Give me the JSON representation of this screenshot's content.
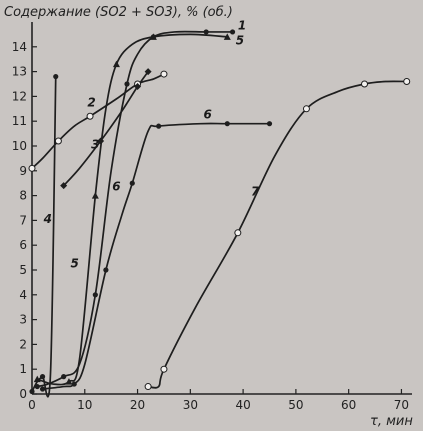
{
  "chart_data": {
    "type": "line",
    "ylabel": "Содержание (SO2 + SO3), % (об.)",
    "xlabel": "τ, мин",
    "xlim": [
      0,
      72
    ],
    "ylim": [
      0,
      15
    ],
    "x_ticks": [
      0,
      10,
      20,
      30,
      40,
      50,
      60,
      70
    ],
    "y_ticks": [
      0,
      1,
      2,
      3,
      4,
      5,
      6,
      7,
      8,
      9,
      10,
      11,
      12,
      13,
      14
    ],
    "grid": false,
    "series": [
      {
        "name": "1",
        "marker": "dot",
        "points": [
          [
            1,
            0.3
          ],
          [
            3,
            0.4
          ],
          [
            6,
            0.7
          ],
          [
            9,
            1.2
          ],
          [
            12,
            4
          ],
          [
            15,
            9
          ],
          [
            18,
            12.5
          ],
          [
            20,
            13.7
          ],
          [
            23,
            14.4
          ],
          [
            27,
            14.6
          ],
          [
            33,
            14.6
          ],
          [
            38,
            14.6
          ]
        ]
      },
      {
        "name": "2",
        "marker": "circle-open",
        "points": [
          [
            0,
            9.1
          ],
          [
            2,
            9.5
          ],
          [
            5,
            10.2
          ],
          [
            8,
            10.8
          ],
          [
            11,
            11.2
          ],
          [
            16,
            11.9
          ],
          [
            20,
            12.5
          ],
          [
            23,
            12.7
          ],
          [
            25,
            12.9
          ]
        ]
      },
      {
        "name": "3",
        "marker": "diamond",
        "points": [
          [
            6,
            8.4
          ],
          [
            9,
            9.1
          ],
          [
            13,
            10.2
          ],
          [
            17,
            11.4
          ],
          [
            20,
            12.4
          ],
          [
            22,
            13
          ]
        ]
      },
      {
        "name": "4",
        "marker": "dot",
        "points": [
          [
            0,
            0.1
          ],
          [
            1,
            0.5
          ],
          [
            2,
            0.7
          ],
          [
            3.5,
            0.8
          ],
          [
            4.5,
            12.8
          ]
        ]
      },
      {
        "name": "5",
        "marker": "triangle",
        "points": [
          [
            1,
            0.6
          ],
          [
            4,
            0.4
          ],
          [
            7,
            0.5
          ],
          [
            9,
            1.4
          ],
          [
            12,
            8
          ],
          [
            14,
            11.5
          ],
          [
            16,
            13.3
          ],
          [
            19,
            14.1
          ],
          [
            23,
            14.4
          ],
          [
            30,
            14.5
          ],
          [
            37,
            14.4
          ]
        ]
      },
      {
        "name": "6",
        "marker": "dot",
        "points": [
          [
            2,
            0.2
          ],
          [
            6,
            0.3
          ],
          [
            8,
            0.4
          ],
          [
            10,
            1.2
          ],
          [
            14,
            5
          ],
          [
            17,
            7.2
          ],
          [
            19,
            8.5
          ],
          [
            22,
            10.6
          ],
          [
            24,
            10.8
          ],
          [
            32,
            10.9
          ],
          [
            37,
            10.9
          ],
          [
            45,
            10.9
          ]
        ]
      },
      {
        "name": "7",
        "marker": "circle-open",
        "points": [
          [
            22,
            0.3
          ],
          [
            24,
            0.3
          ],
          [
            25,
            1
          ],
          [
            31,
            3.5
          ],
          [
            39,
            6.5
          ],
          [
            46,
            9.6
          ],
          [
            52,
            11.5
          ],
          [
            58,
            12.2
          ],
          [
            63,
            12.5
          ],
          [
            67,
            12.6
          ],
          [
            71,
            12.6
          ]
        ]
      }
    ],
    "label_anchors": [
      {
        "name": "1",
        "x": 39,
        "y": 14.7
      },
      {
        "name": "2",
        "x": 10.5,
        "y": 11.6
      },
      {
        "name": "3",
        "x": 11.2,
        "y": 9.9
      },
      {
        "name": "4",
        "x": 2.2,
        "y": 6.9
      },
      {
        "name": "5",
        "x": 7.3,
        "y": 5.1
      },
      {
        "name": "6",
        "x": 15.2,
        "y": 8.2
      },
      {
        "name": "6",
        "x": 32.5,
        "y": 11.1
      },
      {
        "name": "5",
        "x": 38.6,
        "y": 14.1
      },
      {
        "name": "7",
        "x": 41.5,
        "y": 8.0
      }
    ]
  }
}
